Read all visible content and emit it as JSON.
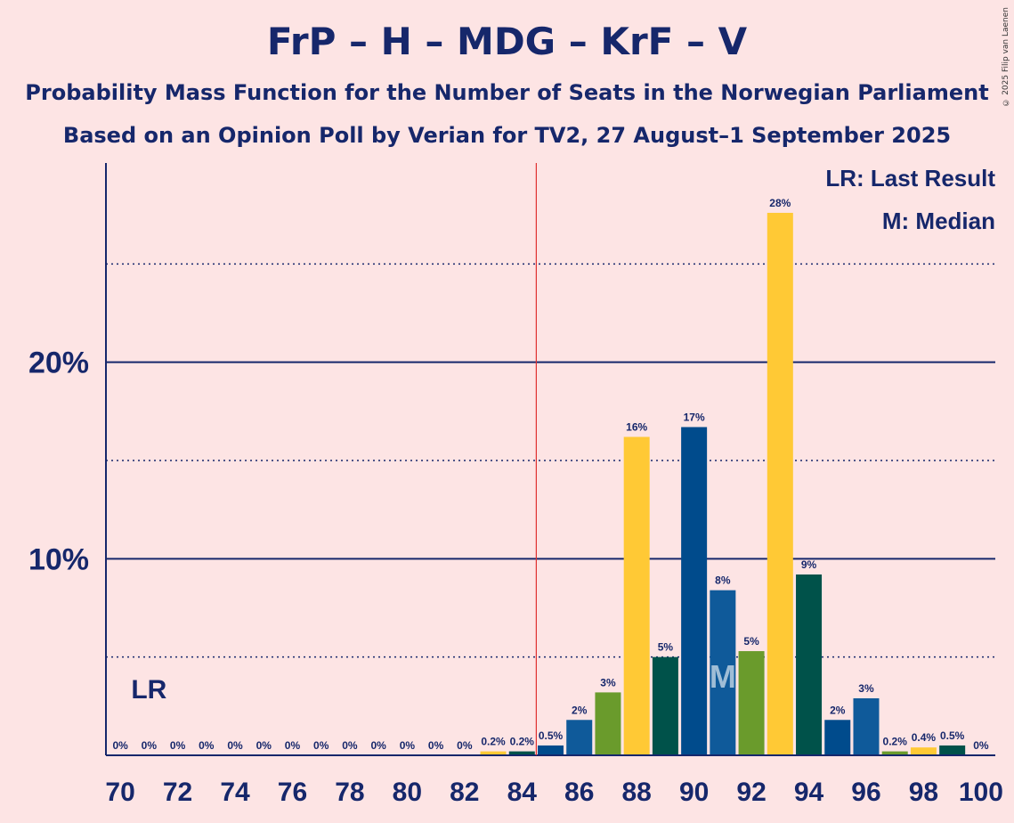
{
  "header": {
    "title": "FrP – H – MDG – KrF – V",
    "subtitle1": "Probability Mass Function for the Number of Seats in the Norwegian Parliament",
    "subtitle2": "Based on an Opinion Poll by Verian for TV2, 27 August–1 September 2025",
    "copyright": "© 2025 Filip van Laenen"
  },
  "legend": {
    "lr": "LR: Last Result",
    "m": "M: Median"
  },
  "markers": {
    "lr_label": "LR",
    "lr_seat": 71,
    "median_label": "M",
    "median_seat": 91,
    "majority_line_seat": 84.5
  },
  "colors": {
    "background": "#fde4e4",
    "title": "#16276b",
    "FrP": "#004b8c",
    "H": "#0f5a9a",
    "MDG": "#6a9b2c",
    "KrF": "#ffc935",
    "V": "#00524a",
    "majority_line": "#e03030"
  },
  "chart_data": {
    "type": "bar",
    "x": [
      70,
      71,
      72,
      73,
      74,
      75,
      76,
      77,
      78,
      79,
      80,
      81,
      82,
      83,
      84,
      85,
      86,
      87,
      88,
      89,
      90,
      91,
      92,
      93,
      94,
      95,
      96,
      97,
      98,
      99,
      100
    ],
    "values": [
      0,
      0,
      0,
      0,
      0,
      0,
      0,
      0,
      0,
      0,
      0,
      0,
      0,
      0.2,
      0.2,
      0.5,
      1.8,
      3.2,
      16.2,
      5.0,
      16.7,
      8.4,
      5.3,
      27.6,
      9.2,
      1.8,
      2.9,
      0.2,
      0.4,
      0.5,
      0
    ],
    "data_labels": [
      "0%",
      "0%",
      "0%",
      "0%",
      "0%",
      "0%",
      "0%",
      "0%",
      "0%",
      "0%",
      "0%",
      "0%",
      "0%",
      "0.2%",
      "0.2%",
      "0.5%",
      "2%",
      "3%",
      "16%",
      "5%",
      "17%",
      "8%",
      "5%",
      "28%",
      "9%",
      "2%",
      "3%",
      "0.2%",
      "0.4%",
      "0.5%",
      "0%"
    ],
    "bar_colors": [
      "#004b8c",
      "#0f5a9a",
      "#6a9b2c",
      "#ffc935",
      "#00524a",
      "#004b8c",
      "#0f5a9a",
      "#6a9b2c",
      "#ffc935",
      "#00524a",
      "#004b8c",
      "#0f5a9a",
      "#6a9b2c",
      "#ffc935",
      "#00524a",
      "#004b8c",
      "#0f5a9a",
      "#6a9b2c",
      "#ffc935",
      "#00524a",
      "#004b8c",
      "#0f5a9a",
      "#6a9b2c",
      "#ffc935",
      "#00524a",
      "#004b8c",
      "#0f5a9a",
      "#6a9b2c",
      "#ffc935",
      "#00524a",
      "#004b8c"
    ],
    "x_tick_labels": [
      "70",
      "72",
      "74",
      "76",
      "78",
      "80",
      "82",
      "84",
      "86",
      "88",
      "90",
      "92",
      "94",
      "96",
      "98",
      "100"
    ],
    "y_tick_labels": [
      "10%",
      "20%"
    ],
    "ylim": [
      0,
      30
    ],
    "xlim": [
      69.5,
      100.5
    ],
    "gridlines_solid": [
      10,
      20
    ],
    "gridlines_dotted": [
      5,
      15,
      25
    ]
  }
}
